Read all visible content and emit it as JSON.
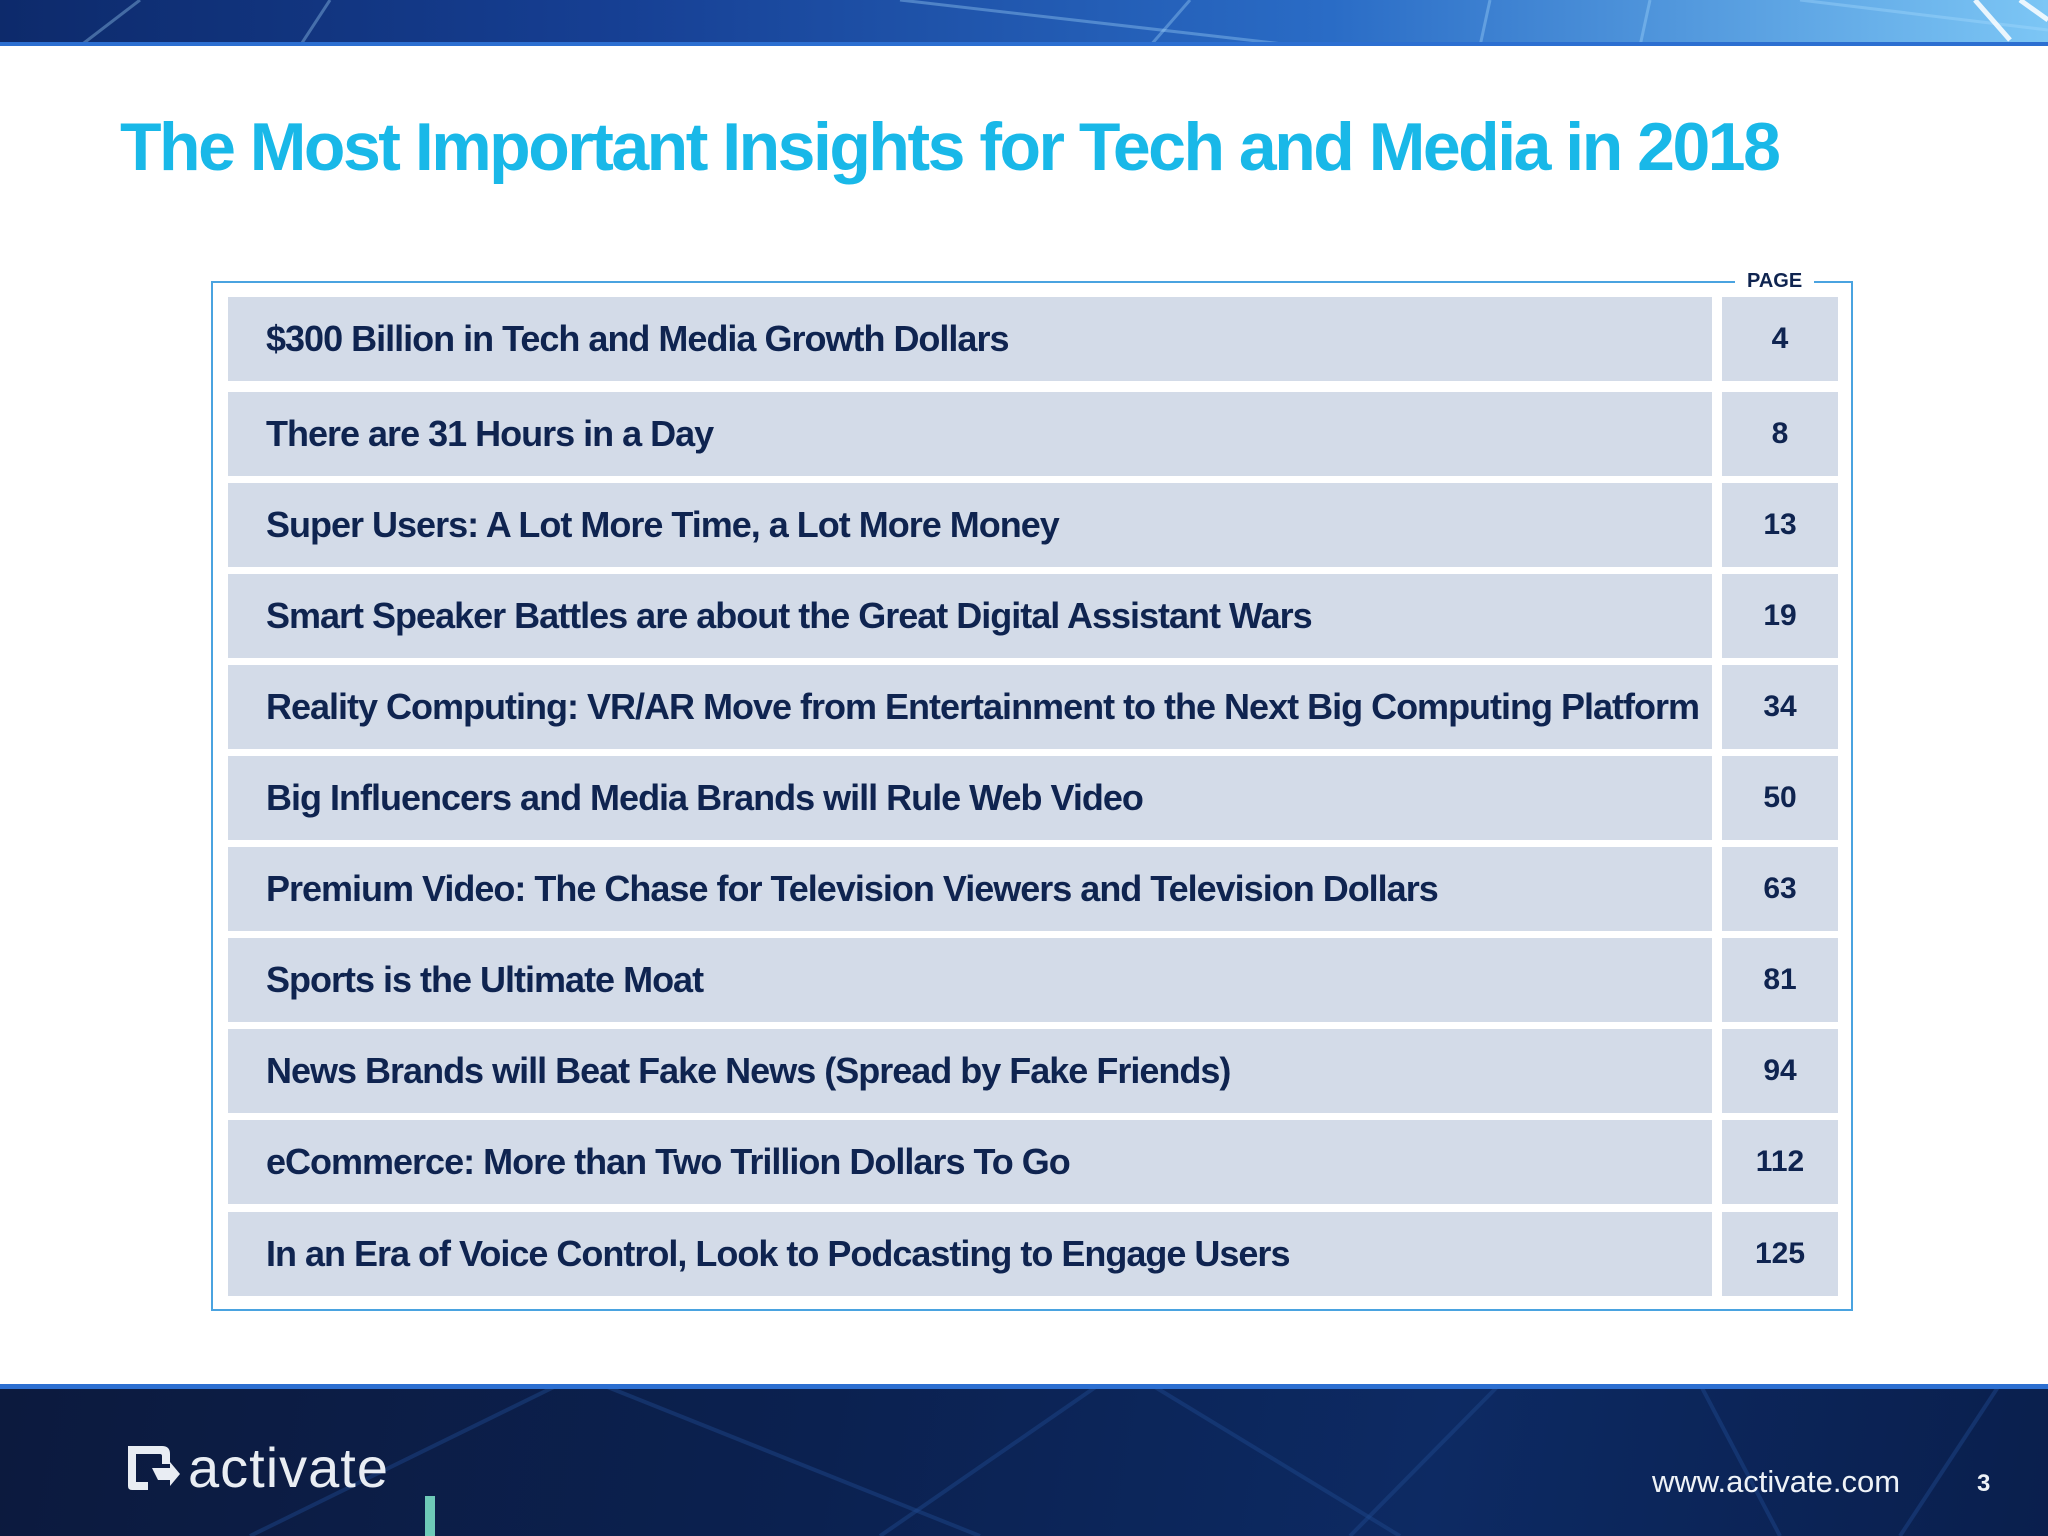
{
  "title": "The Most Important Insights for Tech and Media in 2018",
  "toc": {
    "page_header": "PAGE",
    "items": [
      {
        "title": "$300 Billion in Tech and Media Growth Dollars",
        "page": "4"
      },
      {
        "title": "There are 31 Hours in a Day",
        "page": "8"
      },
      {
        "title": "Super Users: A Lot More Time, a Lot More Money",
        "page": "13"
      },
      {
        "title": "Smart Speaker Battles are about the Great Digital Assistant Wars",
        "page": "19"
      },
      {
        "title": "Reality Computing: VR/AR Move from Entertainment to the Next Big Computing Platform",
        "page": "34"
      },
      {
        "title": "Big Influencers and Media Brands will Rule Web Video",
        "page": "50"
      },
      {
        "title": "Premium Video: The Chase for Television Viewers and Television Dollars",
        "page": "63"
      },
      {
        "title": "Sports is the Ultimate Moat",
        "page": "81"
      },
      {
        "title": "News Brands will Beat Fake News (Spread by Fake Friends)",
        "page": "94"
      },
      {
        "title": "eCommerce: More than Two Trillion Dollars To Go",
        "page": "112"
      },
      {
        "title": "In an Era of Voice Control, Look to Podcasting to Engage Users",
        "page": "125"
      }
    ]
  },
  "footer": {
    "logo_text": "activate",
    "url": "www.activate.com",
    "page_number": "3"
  },
  "colors": {
    "title": "#19b8e8",
    "row_background": "#d3dbe8",
    "row_text": "#0f2450",
    "frame_border": "#4aa3e0",
    "footer_background": "#0b2150",
    "logo_accent": "#6ec9b7"
  }
}
